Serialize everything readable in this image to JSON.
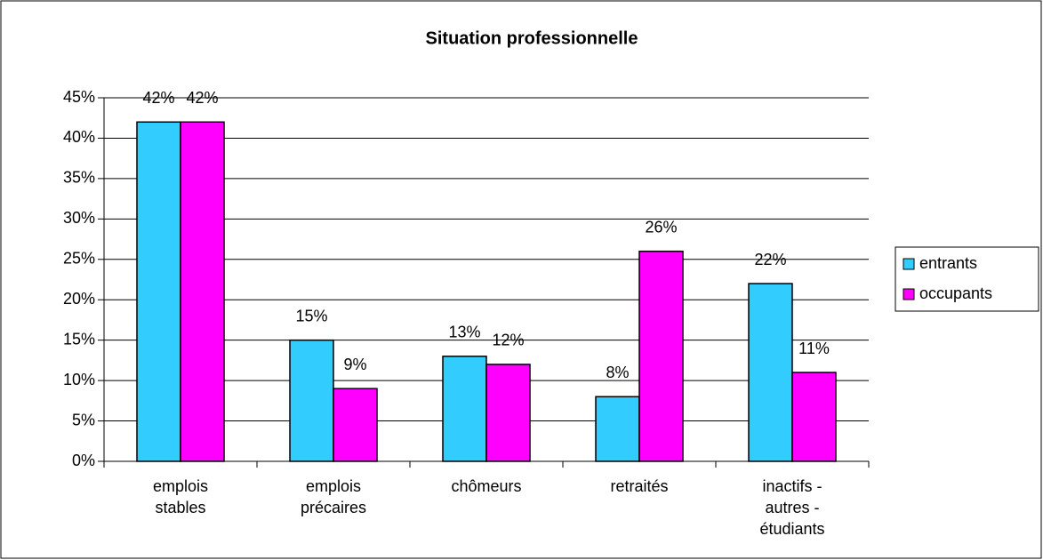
{
  "chart_data": {
    "type": "bar",
    "title": "Situation professionnelle",
    "categories": [
      "emplois stables",
      "emplois précaires",
      "chômeurs",
      "retraités",
      "inactifs - autres - étudiants"
    ],
    "series": [
      {
        "name": "entrants",
        "color": "#33ccff",
        "values": [
          42,
          15,
          13,
          8,
          22
        ],
        "value_labels": [
          "42%",
          "15%",
          "13%",
          "8%",
          "22%"
        ]
      },
      {
        "name": "occupants",
        "color": "#ff00ff",
        "values": [
          42,
          9,
          12,
          26,
          11
        ],
        "value_labels": [
          "42%",
          "9%",
          "12%",
          "26%",
          "11%"
        ]
      }
    ],
    "ylim": [
      0,
      45
    ],
    "yticks": [
      {
        "value": 0,
        "label": "0%"
      },
      {
        "value": 5,
        "label": "5%"
      },
      {
        "value": 10,
        "label": "10%"
      },
      {
        "value": 15,
        "label": "15%"
      },
      {
        "value": 20,
        "label": "20%"
      },
      {
        "value": 25,
        "label": "25%"
      },
      {
        "value": 30,
        "label": "30%"
      },
      {
        "value": 35,
        "label": "35%"
      },
      {
        "value": 40,
        "label": "40%"
      },
      {
        "value": 45,
        "label": "45%"
      }
    ],
    "grid": true,
    "legend": "right"
  }
}
